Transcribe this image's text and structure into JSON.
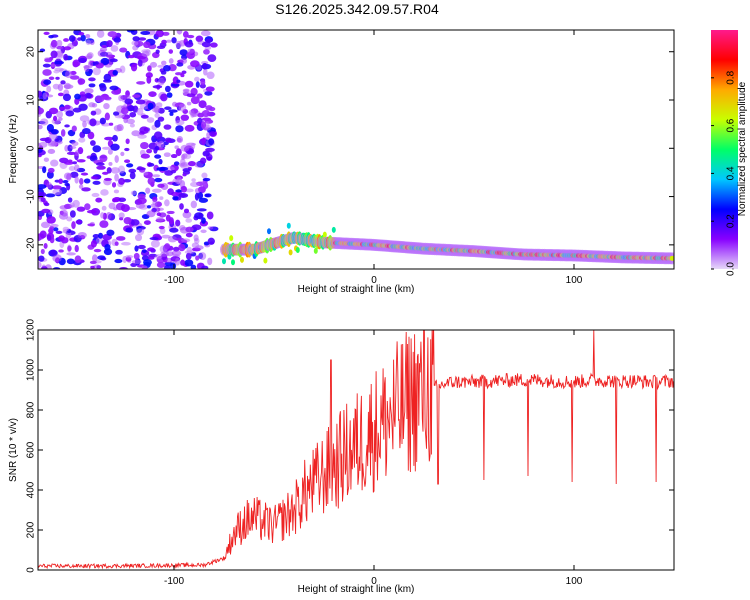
{
  "title": "S126.2025.342.09.57.R04",
  "chart_data": [
    {
      "type": "heatmap",
      "xlabel": "Height of straight line (km)",
      "ylabel": "Frequency (Hz)",
      "xlim": [
        -168,
        150
      ],
      "ylim": [
        -25,
        24.5
      ],
      "xticks": [
        -100,
        0,
        100
      ],
      "yticks": [
        -20,
        -10,
        0,
        10,
        20
      ],
      "colorbar": {
        "label": "Normalized spectral amplitude",
        "range": [
          0,
          1
        ],
        "ticks": [
          0.0,
          0.2,
          0.4,
          0.6,
          0.8
        ],
        "tick_labels": [
          "0.0",
          "0.2",
          "0.4",
          "0.6",
          "0.8"
        ],
        "colormap": [
          "#e6d8f8",
          "#8800ff",
          "#0000ff",
          "#00c8ff",
          "#00ff66",
          "#c8ff00",
          "#ffaa00",
          "#ff0000",
          "#ff1a8c"
        ]
      },
      "description_values": {
        "noise_region_x": [
          -168,
          -80
        ],
        "signal_band": [
          {
            "x": -75,
            "f": -21
          },
          {
            "x": -60,
            "f": -21
          },
          {
            "x": -40,
            "f": -18.5
          },
          {
            "x": -25,
            "f": -19.5
          },
          {
            "x": 0,
            "f": -20
          },
          {
            "x": 25,
            "f": -20.8
          },
          {
            "x": 50,
            "f": -21.3
          },
          {
            "x": 75,
            "f": -22
          },
          {
            "x": 100,
            "f": -22.2
          },
          {
            "x": 125,
            "f": -22.6
          },
          {
            "x": 150,
            "f": -22.8
          }
        ]
      }
    },
    {
      "type": "line",
      "xlabel": "Height of straight line (km)",
      "ylabel": "SNR (10 * v/v)",
      "xlim": [
        -168,
        150
      ],
      "ylim": [
        0,
        1200
      ],
      "xticks": [
        -100,
        0,
        100
      ],
      "yticks": [
        0,
        200,
        400,
        600,
        800,
        1000,
        1200
      ],
      "color": "#ee2222",
      "series": [
        {
          "x": [
            -168,
            -140,
            -110,
            -85,
            -75,
            -70,
            -65,
            -60,
            -55,
            -50,
            -45,
            -40,
            -35,
            -30,
            -25,
            -20,
            -15,
            -10,
            -5,
            0,
            5,
            10,
            15,
            20,
            25,
            30,
            35,
            40,
            50,
            60,
            70,
            80,
            90,
            100,
            110,
            120,
            130,
            140,
            150
          ],
          "y": [
            20,
            20,
            22,
            25,
            60,
            180,
            240,
            260,
            240,
            220,
            260,
            300,
            380,
            430,
            480,
            520,
            570,
            610,
            660,
            700,
            740,
            780,
            820,
            870,
            890,
            910,
            930,
            940,
            940,
            945,
            950,
            950,
            945,
            940,
            950,
            945,
            945,
            940,
            945
          ],
          "spikes": [
            {
              "x": -21.5,
              "y": 1050
            },
            {
              "x": -15,
              "y": 800
            },
            {
              "x": 32,
              "y": 430
            },
            {
              "x": 55,
              "y": 450
            },
            {
              "x": 77,
              "y": 470
            },
            {
              "x": 99,
              "y": 440
            },
            {
              "x": 110,
              "y": 1200
            },
            {
              "x": 121,
              "y": 430
            },
            {
              "x": 141,
              "y": 440
            }
          ]
        }
      ]
    }
  ]
}
